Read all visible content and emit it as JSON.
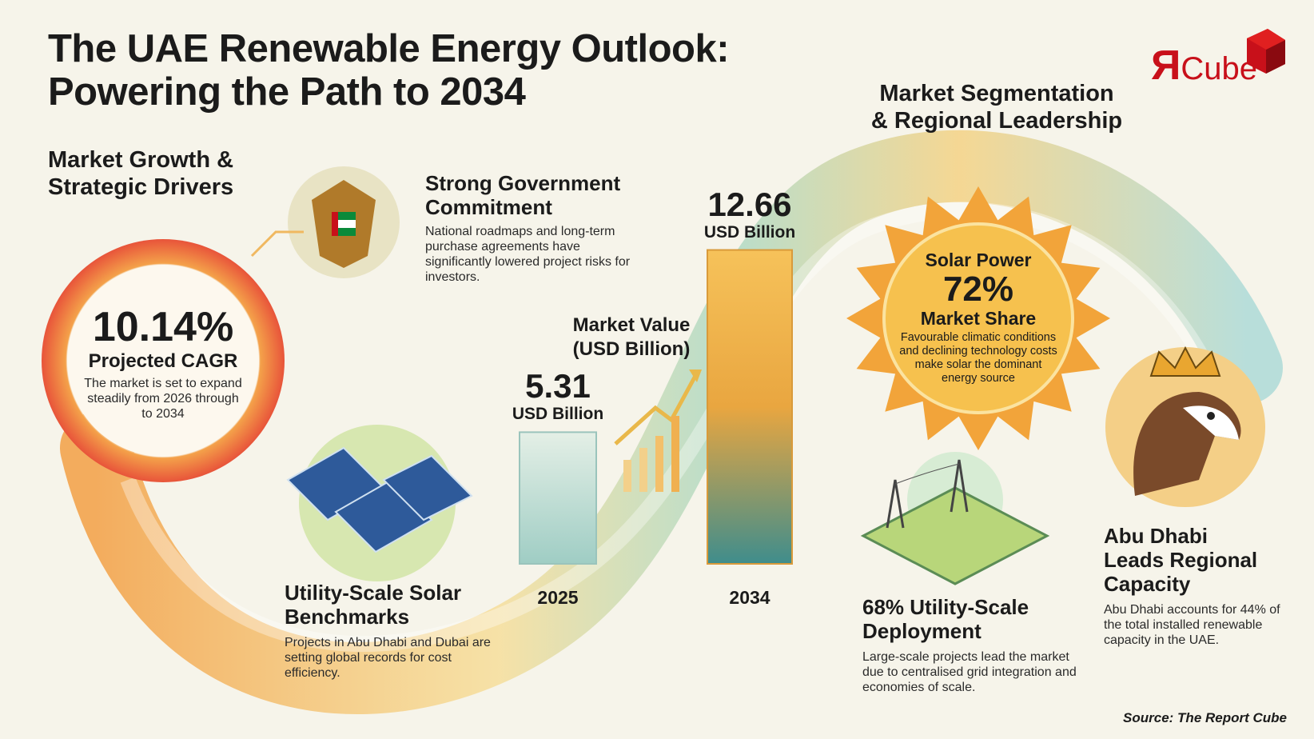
{
  "title_line1": "The UAE Renewable Energy Outlook:",
  "title_line2": "Powering the Path to 2034",
  "logo": {
    "text": "ЯCube",
    "color": "#c8101a"
  },
  "left_section": {
    "heading_line1": "Market Growth &",
    "heading_line2": "Strategic Drivers"
  },
  "cagr": {
    "value": "10.14%",
    "label": "Projected CAGR",
    "desc": "The market is set to expand steadily from 2026 through to 2034"
  },
  "government": {
    "heading_line1": "Strong Government",
    "heading_line2": "Commitment",
    "desc": "National roadmaps and long-term purchase agreements have significantly lowered project risks for investors."
  },
  "solar_benchmarks": {
    "heading_line1": "Utility-Scale Solar",
    "heading_line2": "Benchmarks",
    "desc": "Projects in Abu Dhabi and Dubai are setting global records for cost efficiency."
  },
  "chart_data": {
    "type": "bar",
    "title_line1": "Market Value",
    "title_line2": "(USD Billion)",
    "categories": [
      "2025",
      "2034"
    ],
    "values": [
      5.31,
      12.66
    ],
    "value_labels": [
      "5.31",
      "12.66"
    ],
    "unit_label": "USD Billion"
  },
  "right_section": {
    "heading_line1": "Market Segmentation",
    "heading_line2": "& Regional Leadership"
  },
  "solar_share": {
    "title": "Solar Power",
    "value": "72%",
    "label": "Market Share",
    "desc": "Favourable climatic conditions and declining technology costs make solar the dominant energy source"
  },
  "utility_scale": {
    "heading_line1": "68% Utility-Scale",
    "heading_line2": "Deployment",
    "desc": "Large-scale projects lead the market due to centralised grid integration and economies of scale."
  },
  "abu_dhabi": {
    "heading_line1": "Abu Dhabi",
    "heading_line2": "Leads Regional",
    "heading_line3": "Capacity",
    "desc": "Abu Dhabi accounts for 44% of the total installed renewable capacity in the UAE."
  },
  "source": "Source: The Report Cube"
}
